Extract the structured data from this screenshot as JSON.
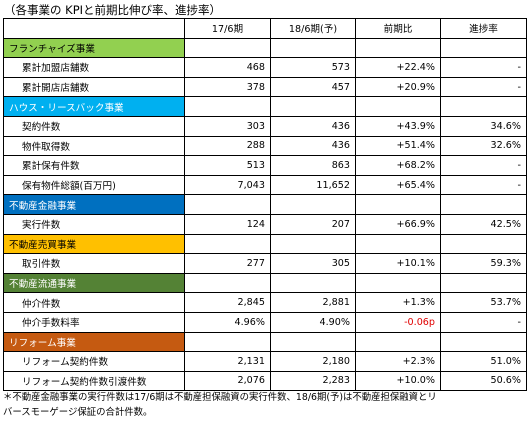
{
  "title": "（各事業の KPIと前期比伸び率、進捗率）",
  "headers": [
    "",
    "17/6期",
    "18/6期(予)",
    "前期比",
    "進捗率"
  ],
  "sections": [
    {
      "name": "フランチャイズ事業",
      "color": "#92d050",
      "text_color": "#000000",
      "rows": [
        {
          "label": "累計加盟店舗数",
          "v17": "468",
          "v18": "573",
          "yoy": "+22.4%",
          "progress": "-"
        },
        {
          "label": "累計開店店舗数",
          "v17": "378",
          "v18": "457",
          "yoy": "+20.9%",
          "progress": "-"
        }
      ]
    },
    {
      "name": "ハウス・リースバック事業",
      "color": "#00b0f0",
      "text_color": "#ffffff",
      "rows": [
        {
          "label": "契約件数",
          "v17": "303",
          "v18": "436",
          "yoy": "+43.9%",
          "progress": "34.6%"
        },
        {
          "label": "物件取得数",
          "v17": "288",
          "v18": "436",
          "yoy": "+51.4%",
          "progress": "32.6%"
        },
        {
          "label": "累計保有件数",
          "v17": "513",
          "v18": "863",
          "yoy": "+68.2%",
          "progress": "-"
        },
        {
          "label": "保有物件総額(百万円)",
          "v17": "7,043",
          "v18": "11,652",
          "yoy": "+65.4%",
          "progress": "-"
        }
      ]
    },
    {
      "name": "不動産金融事業",
      "color": "#0070c0",
      "text_color": "#ffffff",
      "rows": [
        {
          "label": "実行件数",
          "v17": "124",
          "v18": "207",
          "yoy": "+66.9%",
          "progress": "42.5%"
        }
      ]
    },
    {
      "name": "不動産売買事業",
      "color": "#ffc000",
      "text_color": "#000000",
      "rows": [
        {
          "label": "取引件数",
          "v17": "277",
          "v18": "305",
          "yoy": "+10.1%",
          "progress": "59.3%"
        }
      ]
    },
    {
      "name": "不動産流通事業",
      "color": "#548235",
      "text_color": "#ffffff",
      "rows": [
        {
          "label": "仲介件数",
          "v17": "2,845",
          "v18": "2,881",
          "yoy": "+1.3%",
          "progress": "53.7%"
        },
        {
          "label": "仲介手数料率",
          "v17": "4.96%",
          "v18": "4.90%",
          "yoy": "-0.06p",
          "yoy_red": true,
          "progress": "-"
        }
      ]
    },
    {
      "name": "リフォーム事業",
      "color": "#c55a11",
      "text_color": "#ffffff",
      "rows": [
        {
          "label": "リフォーム契約件数",
          "v17": "2,131",
          "v18": "2,180",
          "yoy": "+2.3%",
          "progress": "51.0%"
        },
        {
          "label": "リフォーム契約件数引渡件数",
          "v17": "2,076",
          "v18": "2,283",
          "yoy": "+10.0%",
          "progress": "50.6%"
        }
      ]
    }
  ],
  "footnote": [
    "＊不動産金融事業の実行件数は17/6期は不動産担保融資の実行件数、18/6期(予)は不動産担保融資とリ",
    "バースモーゲージ保証の合計件数。"
  ]
}
